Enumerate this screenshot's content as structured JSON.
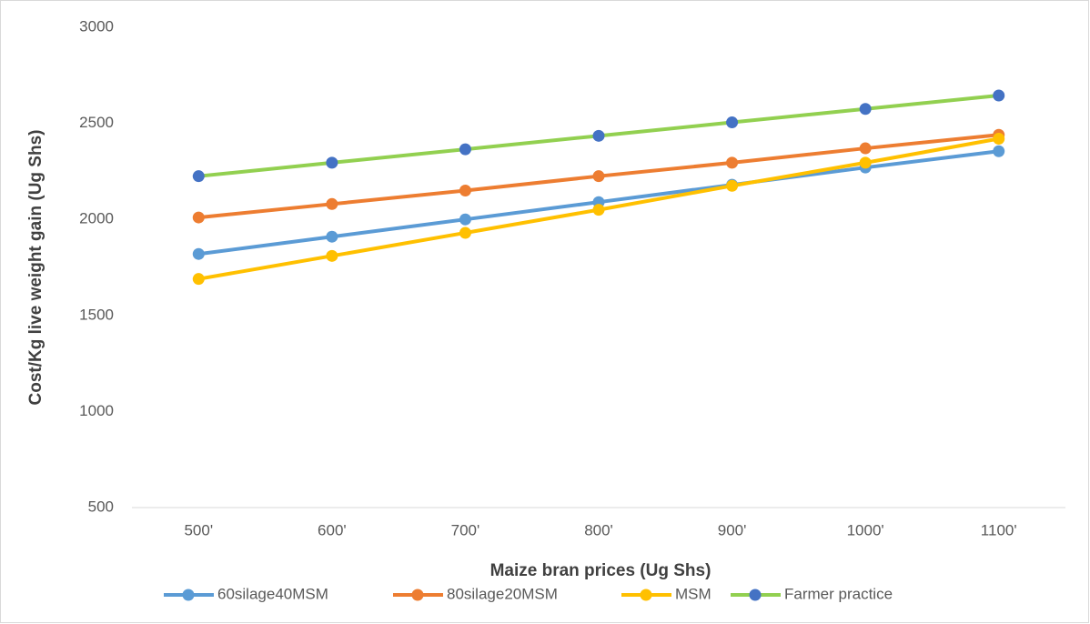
{
  "chart_data": {
    "type": "line",
    "x_label": "Maize bran  prices (Ug Shs)",
    "y_label": "Cost/Kg live weight gain (Ug Shs)",
    "categories": [
      "500'",
      "600'",
      "700'",
      "800'",
      "900'",
      "1000'",
      "1100'"
    ],
    "series": [
      {
        "name": "60silage40MSM",
        "color": "#5b9bd5",
        "marker_color": "#5b9bd5",
        "values": [
          1820,
          1910,
          2000,
          2090,
          2180,
          2270,
          2355
        ]
      },
      {
        "name": "80silage20MSM",
        "color": "#ed7d31",
        "marker_color": "#ed7d31",
        "values": [
          2010,
          2080,
          2150,
          2225,
          2295,
          2370,
          2440
        ]
      },
      {
        "name": "MSM",
        "color": "#ffc000",
        "marker_color": "#ffc000",
        "values": [
          1690,
          1810,
          1930,
          2050,
          2175,
          2295,
          2420
        ]
      },
      {
        "name": "Farmer practice",
        "color": "#92d050",
        "marker_color": "#4472c4",
        "values": [
          2225,
          2295,
          2365,
          2435,
          2505,
          2575,
          2645
        ]
      }
    ],
    "ylim": [
      500,
      3000
    ],
    "yticks": [
      500,
      1000,
      1500,
      2000,
      2500,
      3000
    ],
    "grid": false,
    "legend": "bottom"
  }
}
